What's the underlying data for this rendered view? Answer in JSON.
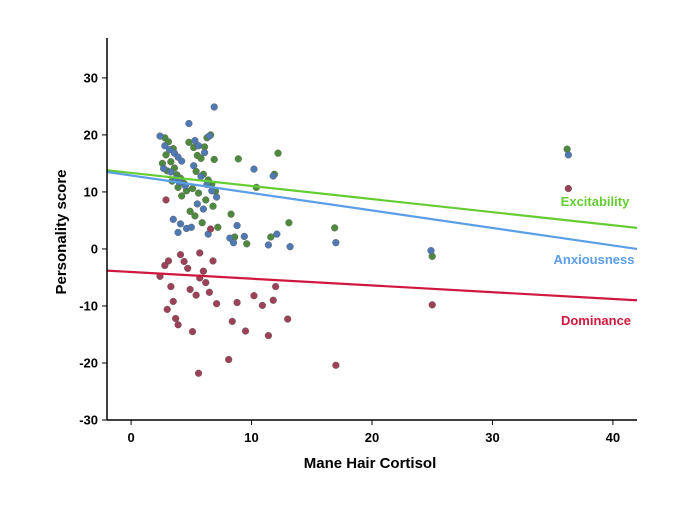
{
  "chart_data": {
    "type": "scatter",
    "title": "",
    "xlabel": "Mane Hair Cortisol",
    "ylabel": "Personality score",
    "xlim": [
      -2,
      42
    ],
    "ylim": [
      -30,
      37
    ],
    "xticks": [
      0,
      10,
      20,
      30,
      40
    ],
    "yticks": [
      -30,
      -20,
      -10,
      0,
      10,
      20,
      30
    ],
    "grid": false,
    "legend": "none",
    "series": [
      {
        "name": "Excitability",
        "color": "#4e8a3e",
        "fit_color": "#66cc33",
        "fit": {
          "x": [
            -2,
            42
          ],
          "y": [
            13.8,
            3.7
          ]
        },
        "points": [
          [
            2.8,
            19.5
          ],
          [
            3.1,
            18.8
          ],
          [
            3.5,
            17.6
          ],
          [
            2.9,
            16.5
          ],
          [
            3.3,
            15.3
          ],
          [
            2.6,
            15.0
          ],
          [
            3.6,
            14.2
          ],
          [
            3.0,
            13.7
          ],
          [
            3.8,
            13.0
          ],
          [
            4.1,
            12.4
          ],
          [
            3.4,
            11.9
          ],
          [
            4.4,
            11.5
          ],
          [
            3.9,
            10.8
          ],
          [
            4.6,
            10.2
          ],
          [
            4.2,
            9.3
          ],
          [
            4.8,
            18.7
          ],
          [
            5.2,
            17.8
          ],
          [
            5.5,
            16.4
          ],
          [
            5.8,
            15.9
          ],
          [
            6.1,
            17.9
          ],
          [
            6.3,
            19.5
          ],
          [
            6.6,
            20.0
          ],
          [
            6.9,
            15.7
          ],
          [
            5.4,
            13.6
          ],
          [
            6.0,
            13.1
          ],
          [
            6.4,
            12.1
          ],
          [
            6.7,
            11.4
          ],
          [
            7.0,
            10.1
          ],
          [
            5.1,
            10.6
          ],
          [
            5.6,
            9.8
          ],
          [
            6.2,
            8.6
          ],
          [
            6.8,
            7.5
          ],
          [
            4.9,
            6.6
          ],
          [
            5.3,
            5.8
          ],
          [
            5.9,
            4.6
          ],
          [
            7.2,
            3.8
          ],
          [
            8.3,
            6.1
          ],
          [
            8.6,
            2.1
          ],
          [
            8.9,
            15.8
          ],
          [
            9.6,
            0.9
          ],
          [
            10.4,
            10.8
          ],
          [
            11.6,
            2.1
          ],
          [
            11.9,
            13.1
          ],
          [
            12.2,
            16.8
          ],
          [
            13.1,
            4.6
          ],
          [
            16.9,
            3.7
          ],
          [
            25.0,
            -1.3
          ],
          [
            36.2,
            17.5
          ]
        ]
      },
      {
        "name": "Anxiousness",
        "color": "#4e79b3",
        "fit_color": "#5b9ee8",
        "fit": {
          "x": [
            -2,
            42
          ],
          "y": [
            13.5,
            0.0
          ]
        },
        "points": [
          [
            2.4,
            19.8
          ],
          [
            2.8,
            18.1
          ],
          [
            3.2,
            17.4
          ],
          [
            3.6,
            16.8
          ],
          [
            3.9,
            16.1
          ],
          [
            4.2,
            15.4
          ],
          [
            2.7,
            14.1
          ],
          [
            3.3,
            13.5
          ],
          [
            3.7,
            12.3
          ],
          [
            4.0,
            11.7
          ],
          [
            4.5,
            11.1
          ],
          [
            4.8,
            22.0
          ],
          [
            5.3,
            19.0
          ],
          [
            5.6,
            18.1
          ],
          [
            6.1,
            16.9
          ],
          [
            6.5,
            19.8
          ],
          [
            6.9,
            24.9
          ],
          [
            5.2,
            14.6
          ],
          [
            5.8,
            12.7
          ],
          [
            6.3,
            11.3
          ],
          [
            6.7,
            10.2
          ],
          [
            7.1,
            9.1
          ],
          [
            5.5,
            7.9
          ],
          [
            6.0,
            7.0
          ],
          [
            3.5,
            5.2
          ],
          [
            4.1,
            4.4
          ],
          [
            4.6,
            3.6
          ],
          [
            3.9,
            2.9
          ],
          [
            5.0,
            3.8
          ],
          [
            6.4,
            2.6
          ],
          [
            8.2,
            1.9
          ],
          [
            8.5,
            1.1
          ],
          [
            8.8,
            4.1
          ],
          [
            9.4,
            2.2
          ],
          [
            10.2,
            14.0
          ],
          [
            11.4,
            0.7
          ],
          [
            11.8,
            12.8
          ],
          [
            12.1,
            2.6
          ],
          [
            13.2,
            0.4
          ],
          [
            17.0,
            1.1
          ],
          [
            24.9,
            -0.3
          ],
          [
            36.3,
            16.5
          ]
        ]
      },
      {
        "name": "Dominance",
        "color": "#9c4158",
        "fit_color": "#d0183e",
        "fit": {
          "x": [
            -2,
            42
          ],
          "y": [
            -3.8,
            -9.0
          ]
        },
        "points": [
          [
            2.4,
            -4.8
          ],
          [
            2.8,
            -2.9
          ],
          [
            3.1,
            -2.1
          ],
          [
            3.3,
            -6.6
          ],
          [
            3.5,
            -9.2
          ],
          [
            3.0,
            -10.6
          ],
          [
            3.7,
            -12.2
          ],
          [
            3.9,
            -13.3
          ],
          [
            4.1,
            -1.0
          ],
          [
            4.4,
            -2.2
          ],
          [
            4.7,
            -3.4
          ],
          [
            4.9,
            -7.1
          ],
          [
            5.1,
            -14.5
          ],
          [
            5.4,
            -8.1
          ],
          [
            5.7,
            -5.1
          ],
          [
            6.0,
            -3.9
          ],
          [
            6.2,
            -5.9
          ],
          [
            6.5,
            -7.6
          ],
          [
            6.8,
            -2.1
          ],
          [
            7.1,
            -9.6
          ],
          [
            5.6,
            -21.8
          ],
          [
            8.1,
            -19.4
          ],
          [
            8.4,
            -12.7
          ],
          [
            8.8,
            -9.4
          ],
          [
            9.5,
            -14.4
          ],
          [
            10.2,
            -8.2
          ],
          [
            10.9,
            -9.9
          ],
          [
            11.4,
            -15.2
          ],
          [
            11.8,
            -9.0
          ],
          [
            12.0,
            -6.6
          ],
          [
            13.0,
            -12.3
          ],
          [
            17.0,
            -20.4
          ],
          [
            25.0,
            -9.8
          ],
          [
            36.3,
            10.6
          ],
          [
            6.6,
            3.5
          ],
          [
            2.9,
            8.6
          ],
          [
            5.7,
            -0.7
          ]
        ]
      }
    ]
  }
}
